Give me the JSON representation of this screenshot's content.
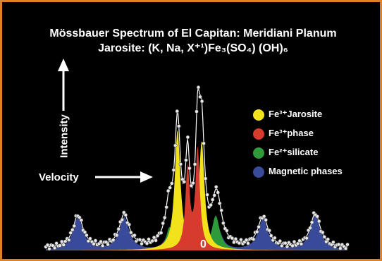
{
  "chart_data": {
    "type": "area",
    "title": "Mössbauer Spectrum of El Capitan:  Meridiani Planum",
    "subtitle": "Jarosite: (K, Na, X⁺¹)Fe₃(SO₄)  (OH)₆",
    "xlabel": "Velocity",
    "ylabel": "Intensity",
    "x_tick_labels": [
      "0"
    ],
    "background": "#000000",
    "legend_placement": "right",
    "series": [
      {
        "name": "Fe³⁺Jarosite",
        "color": "#f2e21c",
        "peaks": [
          {
            "x": -0.95,
            "height": 0.62,
            "width": 0.17
          },
          {
            "x": 0.25,
            "height": 0.56,
            "width": 0.17
          }
        ]
      },
      {
        "name": "Fe³⁺phase",
        "color": "#d63b2d",
        "peaks": [
          {
            "x": -0.45,
            "height": 0.42,
            "width": 0.13
          },
          {
            "x": 0.05,
            "height": 0.52,
            "width": 0.13
          }
        ]
      },
      {
        "name": "Fe²⁺silicate",
        "color": "#2f9a3a",
        "peaks": [
          {
            "x": -1.35,
            "height": 0.12,
            "width": 0.2
          },
          {
            "x": 0.95,
            "height": 0.18,
            "width": 0.24
          }
        ]
      },
      {
        "name": "Magnetic phases",
        "color": "#3a4a9a",
        "peaks": [
          {
            "x": -5.9,
            "height": 0.17,
            "width": 0.3
          },
          {
            "x": -3.6,
            "height": 0.17,
            "width": 0.3
          },
          {
            "x": -1.4,
            "height": 0.08,
            "width": 0.25
          },
          {
            "x": 1.1,
            "height": 0.1,
            "width": 0.25
          },
          {
            "x": 3.3,
            "height": 0.16,
            "width": 0.3
          },
          {
            "x": 5.9,
            "height": 0.18,
            "width": 0.3
          }
        ]
      }
    ],
    "xlim": [
      -7.5,
      7.5
    ],
    "ylim": [
      0,
      1
    ]
  }
}
